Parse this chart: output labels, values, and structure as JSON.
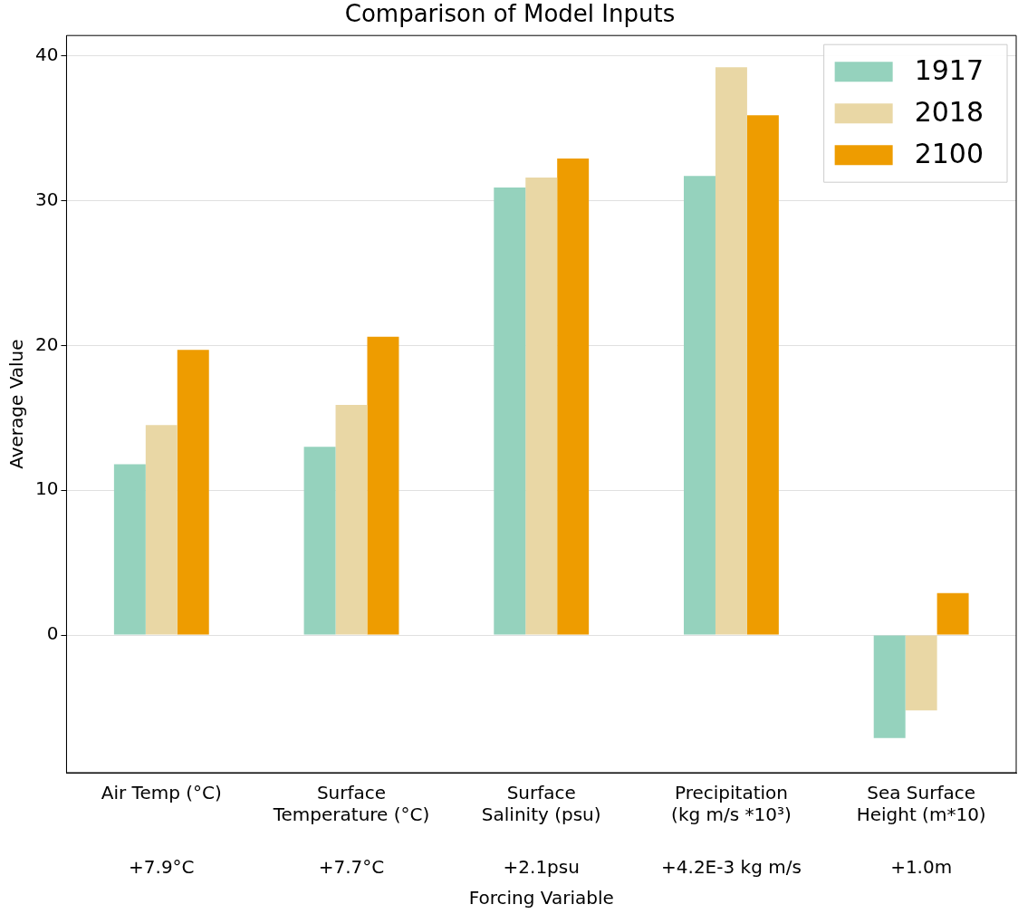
{
  "chart_data": {
    "type": "bar",
    "title": "Comparison of Model Inputs",
    "xlabel": "Forcing Variable",
    "ylabel": "Average Value",
    "categories": [
      "Air Temp (°C)",
      "Surface\nTemperature (°C)",
      "Surface\nSalinity (psu)",
      "Precipitation\n(kg m/s *10³)",
      "Sea Surface\nHeight (m*10)"
    ],
    "series": [
      {
        "name": "1917",
        "color": "#95d2bd",
        "values": [
          11.8,
          13.0,
          30.9,
          31.7,
          -7.1
        ]
      },
      {
        "name": "2018",
        "color": "#e9d7a5",
        "values": [
          14.5,
          15.9,
          31.6,
          39.2,
          -5.2
        ]
      },
      {
        "name": "2100",
        "color": "#ee9c00",
        "values": [
          19.7,
          20.6,
          32.9,
          35.9,
          2.9
        ]
      }
    ],
    "ylim": [
      -9.5,
      41.4
    ],
    "yticks": [
      0,
      10,
      20,
      30,
      40
    ],
    "grid": "y",
    "legend": "top right",
    "annotations": [
      "+7.9°C",
      "+7.7°C",
      "+2.1psu",
      "+4.2E-3 kg m/s",
      "+1.0m"
    ]
  }
}
